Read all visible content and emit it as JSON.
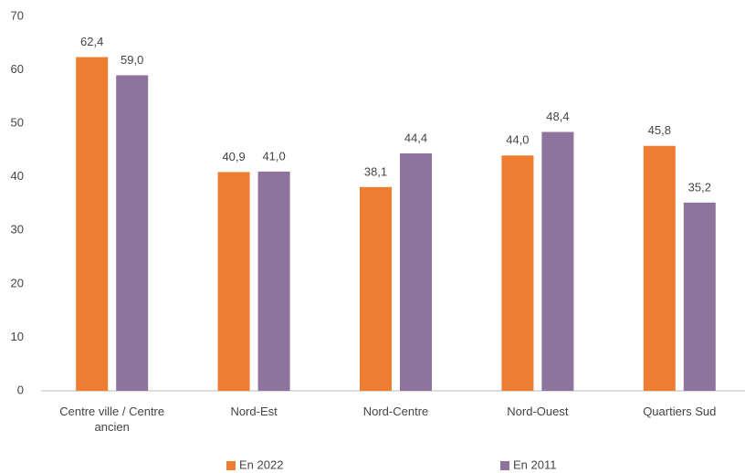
{
  "chart_data": {
    "type": "bar",
    "categories": [
      "Centre ville / Centre ancien",
      "Nord-Est",
      "Nord-Centre",
      "Nord-Ouest",
      "Quartiers Sud"
    ],
    "series": [
      {
        "name": "En 2022",
        "color": "#ed7d31",
        "values": [
          62.4,
          40.9,
          38.1,
          44.0,
          45.8
        ],
        "value_labels": [
          "62,4",
          "40,9",
          "38,1",
          "44,0",
          "45,8"
        ]
      },
      {
        "name": "En 2011",
        "color": "#8e739d",
        "values": [
          59.0,
          41.0,
          44.4,
          48.4,
          35.2
        ],
        "value_labels": [
          "59,0",
          "41,0",
          "44,4",
          "48,4",
          "35,2"
        ]
      }
    ],
    "ylim": [
      0,
      70
    ],
    "yticks": [
      0,
      10,
      20,
      30,
      40,
      50,
      60,
      70
    ],
    "grid": false,
    "legend": "bottom"
  }
}
